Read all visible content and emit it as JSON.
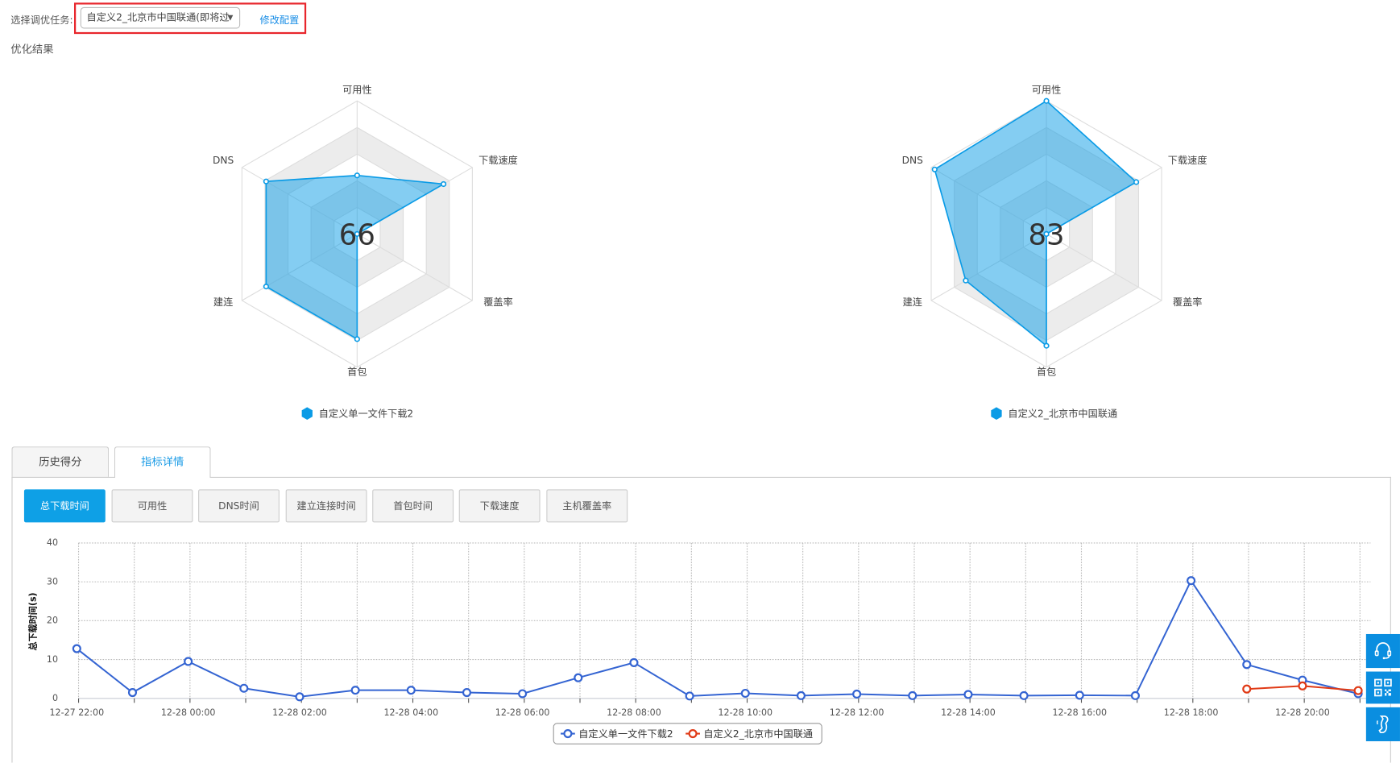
{
  "header": {
    "task_label": "选择调优任务:",
    "task_selected": "自定义2_北京市中国联通(即将过",
    "edit_link": "修改配置",
    "highlight_color": "#e8262c"
  },
  "result_title": "优化结果",
  "radars": [
    {
      "score": "66",
      "legend": "自定义单一文件下载2",
      "axes": [
        "可用性",
        "下载速度",
        "覆盖率",
        "首包",
        "建连",
        "DNS"
      ],
      "values": [
        44,
        75,
        0,
        79,
        79,
        79
      ],
      "max": 100,
      "color": "#0a9be6"
    },
    {
      "score": "83",
      "legend": "自定义2_北京市中国联通",
      "axes": [
        "可用性",
        "下载速度",
        "覆盖率",
        "首包",
        "建连",
        "DNS"
      ],
      "values": [
        100,
        78,
        0,
        84,
        70,
        97
      ],
      "max": 100,
      "color": "#0a9be6"
    }
  ],
  "tabs": [
    {
      "label": "历史得分",
      "active": false
    },
    {
      "label": "指标详情",
      "active": true
    }
  ],
  "metric_buttons": [
    {
      "label": "总下载时间",
      "active": true
    },
    {
      "label": "可用性",
      "active": false
    },
    {
      "label": "DNS时间",
      "active": false
    },
    {
      "label": "建立连接时间",
      "active": false
    },
    {
      "label": "首包时间",
      "active": false
    },
    {
      "label": "下载速度",
      "active": false
    },
    {
      "label": "主机覆盖率",
      "active": false
    }
  ],
  "chart_data": {
    "type": "line",
    "ylabel": "总下载时间(s)",
    "ylim": [
      0,
      40
    ],
    "yticks": [
      "0",
      "10",
      "20",
      "30",
      "40"
    ],
    "grid": true,
    "legend_placement": "bottom",
    "x": [
      "12-27 22:00",
      "12-27 23:00",
      "12-28 00:00",
      "12-28 01:00",
      "12-28 02:00",
      "12-28 03:00",
      "12-28 04:00",
      "12-28 05:00",
      "12-28 06:00",
      "12-28 07:00",
      "12-28 08:00",
      "12-28 09:00",
      "12-28 10:00",
      "12-28 11:00",
      "12-28 12:00",
      "12-28 13:00",
      "12-28 14:00",
      "12-28 15:00",
      "12-28 16:00",
      "12-28 17:00",
      "12-28 18:00",
      "12-28 19:00",
      "12-28 20:00",
      "12-28 21:00"
    ],
    "xtick_labels": [
      "12-27 22:00",
      "12-28 00:00",
      "12-28 02:00",
      "12-28 04:00",
      "12-28 06:00",
      "12-28 08:00",
      "12-28 10:00",
      "12-28 12:00",
      "12-28 14:00",
      "12-28 16:00",
      "12-28 18:00",
      "12-28 20:00"
    ],
    "series": [
      {
        "name": "自定义单一文件下载2",
        "color": "#3464d2",
        "values": [
          12.8,
          1.5,
          9.5,
          2.6,
          0.4,
          2.1,
          2.1,
          1.5,
          1.2,
          5.3,
          9.2,
          0.6,
          1.3,
          0.7,
          1.1,
          0.7,
          1.0,
          0.7,
          0.8,
          0.7,
          30.3,
          8.7,
          4.7,
          1.2
        ]
      },
      {
        "name": "自定义2_北京市中国联通",
        "color": "#e03a16",
        "values": [
          null,
          null,
          null,
          null,
          null,
          null,
          null,
          null,
          null,
          null,
          null,
          null,
          null,
          null,
          null,
          null,
          null,
          null,
          null,
          null,
          null,
          2.4,
          3.2,
          2.0
        ]
      }
    ]
  },
  "side_buttons": [
    {
      "icon": "headset-icon"
    },
    {
      "icon": "qr-code-icon"
    },
    {
      "icon": "phone-icon"
    }
  ],
  "colors": {
    "accent": "#0ea0e6",
    "side": "#0a8ee0"
  }
}
